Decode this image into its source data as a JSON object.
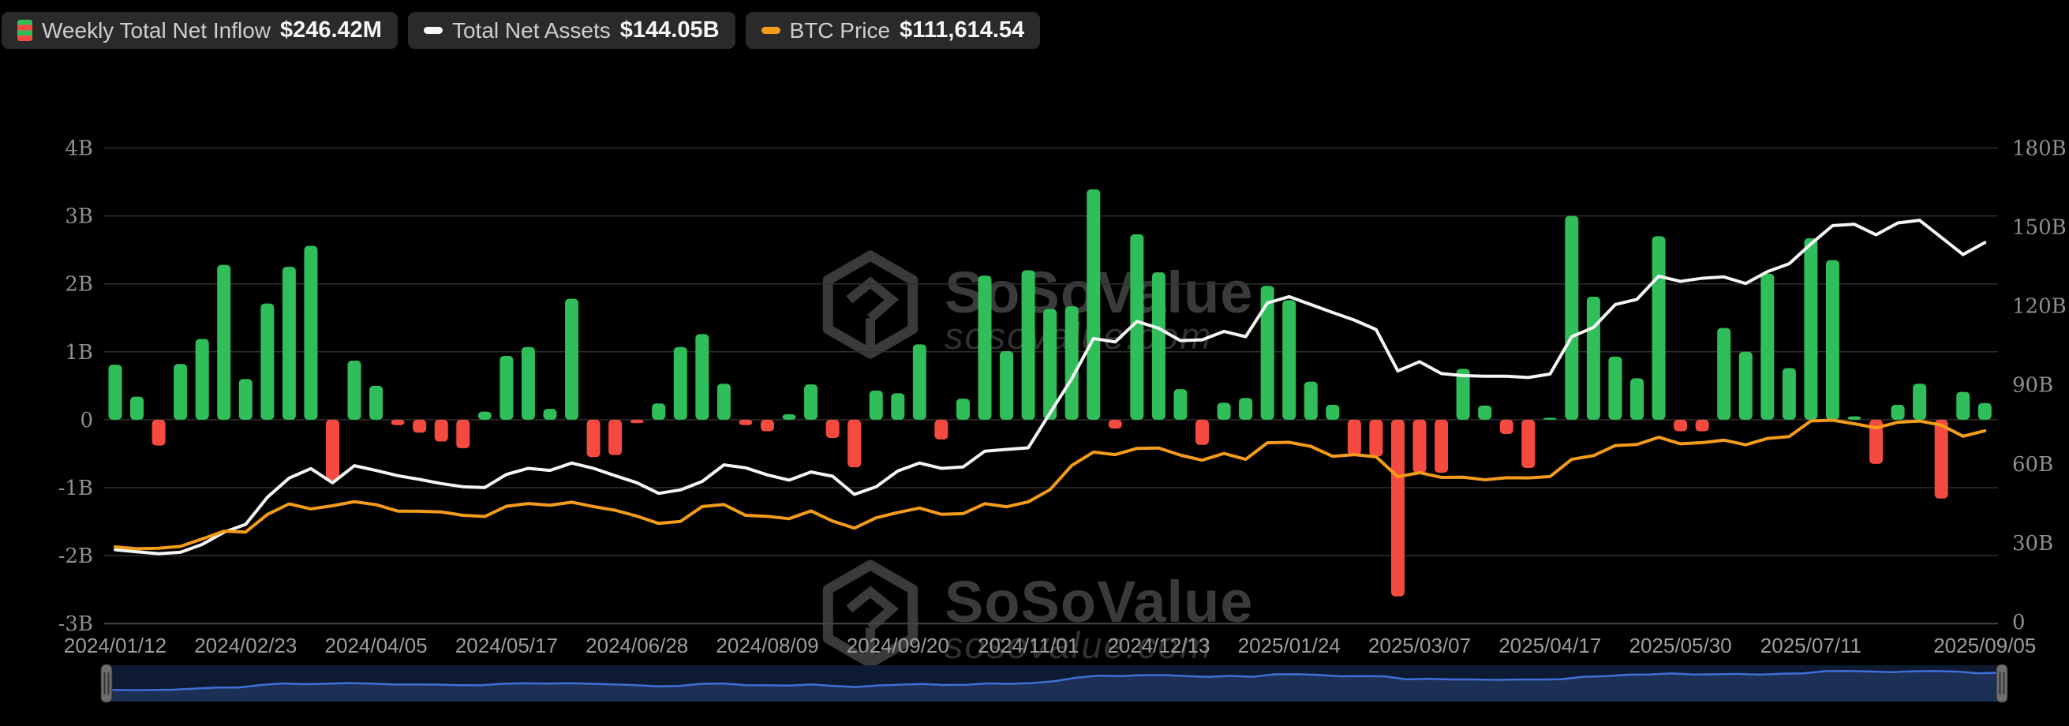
{
  "legend": {
    "items": [
      {
        "label": "Weekly Total Net Inflow",
        "value": "$246.42M",
        "icon": "inflow-bars-icon"
      },
      {
        "label": "Total Net Assets",
        "value": "$144.05B",
        "icon": "white-line-icon"
      },
      {
        "label": "BTC Price",
        "value": "$111,614.54",
        "icon": "orange-line-icon"
      }
    ]
  },
  "watermark": {
    "brand": "SoSoValue",
    "domain": "sosovalue.com"
  },
  "colors": {
    "background": "#000000",
    "bar_positive": "#2fbe59",
    "bar_negative": "#f54a3f",
    "assets_line": "#f5f5f5",
    "btc_line": "#f39b1b",
    "gridline": "#2f2f2f",
    "axis_bottom_line": "#464646",
    "axis_label": "#8f8f8f",
    "date_label": "#9d9d9d",
    "watermark": "#3a3a3a",
    "nav_background": "#0d1a31",
    "nav_fill": "#1c2f55",
    "nav_line": "#3f6fd8",
    "nav_handle": "#6e6e6e",
    "legend_box": "#2a2a2a"
  },
  "chart_data": {
    "type": "bar",
    "title": "",
    "xlabel": "",
    "ylabel_left": "Weekly Total Net Inflow (B$)",
    "ylabel_right": "Total Net Assets (B$)",
    "left_axis_ticks": [
      "4B",
      "3B",
      "2B",
      "1B",
      "0",
      "-1B",
      "-2B",
      "-3B"
    ],
    "left_axis_values": [
      4,
      3,
      2,
      1,
      0,
      -1,
      -2,
      -3
    ],
    "right_axis_ticks": [
      "180B",
      "150B",
      "120B",
      "90B",
      "60B",
      "30B",
      "0"
    ],
    "right_axis_values": [
      180,
      150,
      120,
      90,
      60,
      30,
      0
    ],
    "x_tick_indices": [
      0,
      6,
      12,
      18,
      24,
      30,
      36,
      42,
      48,
      54,
      60,
      66,
      72,
      78,
      86
    ],
    "x_tick_labels": [
      "2024/01/12",
      "2024/02/23",
      "2024/04/05",
      "2024/05/17",
      "2024/06/28",
      "2024/08/09",
      "2024/09/20",
      "2024/11/01",
      "2024/12/13",
      "2025/01/24",
      "2025/03/07",
      "2025/04/17",
      "2025/05/30",
      "2025/07/11",
      "2025/09/05"
    ],
    "categories": [
      "2024/01/12",
      "2024/01/19",
      "2024/01/26",
      "2024/02/02",
      "2024/02/09",
      "2024/02/16",
      "2024/02/23",
      "2024/03/01",
      "2024/03/08",
      "2024/03/15",
      "2024/03/22",
      "2024/03/29",
      "2024/04/05",
      "2024/04/12",
      "2024/04/19",
      "2024/04/26",
      "2024/05/03",
      "2024/05/10",
      "2024/05/17",
      "2024/05/24",
      "2024/05/31",
      "2024/06/07",
      "2024/06/14",
      "2024/06/21",
      "2024/06/28",
      "2024/07/05",
      "2024/07/12",
      "2024/07/19",
      "2024/07/26",
      "2024/08/02",
      "2024/08/09",
      "2024/08/16",
      "2024/08/23",
      "2024/08/30",
      "2024/09/06",
      "2024/09/13",
      "2024/09/20",
      "2024/09/27",
      "2024/10/04",
      "2024/10/11",
      "2024/10/18",
      "2024/10/25",
      "2024/11/01",
      "2024/11/08",
      "2024/11/15",
      "2024/11/22",
      "2024/11/29",
      "2024/12/06",
      "2024/12/13",
      "2024/12/20",
      "2024/12/27",
      "2025/01/03",
      "2025/01/10",
      "2025/01/17",
      "2025/01/24",
      "2025/01/31",
      "2025/02/07",
      "2025/02/14",
      "2025/02/21",
      "2025/02/28",
      "2025/03/07",
      "2025/03/14",
      "2025/03/21",
      "2025/03/28",
      "2025/04/04",
      "2025/04/11",
      "2025/04/17",
      "2025/04/25",
      "2025/05/02",
      "2025/05/09",
      "2025/05/16",
      "2025/05/23",
      "2025/05/30",
      "2025/06/06",
      "2025/06/13",
      "2025/06/20",
      "2025/06/27",
      "2025/07/04",
      "2025/07/11",
      "2025/07/18",
      "2025/07/25",
      "2025/08/01",
      "2025/08/08",
      "2025/08/15",
      "2025/08/22",
      "2025/08/29",
      "2025/09/05"
    ],
    "series": [
      {
        "name": "Weekly Total Net Inflow (B$)",
        "type": "bar",
        "axis": "left",
        "values": [
          0.81,
          0.34,
          -0.38,
          0.82,
          1.19,
          2.28,
          0.6,
          1.71,
          2.25,
          2.56,
          -0.89,
          0.87,
          0.5,
          -0.08,
          -0.19,
          -0.32,
          -0.42,
          0.12,
          0.94,
          1.07,
          0.16,
          1.78,
          -0.55,
          -0.52,
          -0.05,
          0.24,
          1.07,
          1.26,
          0.53,
          -0.08,
          -0.17,
          0.08,
          0.52,
          -0.27,
          -0.7,
          0.43,
          0.39,
          1.11,
          -0.29,
          0.31,
          2.12,
          1.01,
          2.2,
          1.63,
          1.67,
          3.39,
          -0.13,
          2.73,
          2.17,
          0.45,
          -0.37,
          0.25,
          0.32,
          1.97,
          1.76,
          0.56,
          0.22,
          -0.52,
          -0.54,
          -2.6,
          -0.78,
          -0.78,
          0.75,
          0.21,
          -0.21,
          -0.71,
          0.03,
          3.0,
          1.81,
          0.93,
          0.61,
          2.7,
          -0.17,
          -0.17,
          1.35,
          1.0,
          2.15,
          0.76,
          2.67,
          2.35,
          0.05,
          -0.65,
          0.22,
          0.53,
          -1.16,
          0.41,
          0.246
        ]
      },
      {
        "name": "Total Net Assets (B$)",
        "type": "line",
        "axis": "right",
        "values": [
          27.4,
          26.6,
          25.9,
          26.4,
          29.4,
          34.0,
          37.0,
          47.3,
          54.6,
          58.2,
          52.8,
          59.3,
          57.5,
          55.5,
          54.1,
          52.5,
          51.3,
          51.0,
          56.0,
          58.3,
          57.5,
          60.3,
          58.3,
          55.5,
          52.8,
          48.8,
          50.1,
          53.3,
          59.6,
          58.5,
          55.8,
          53.8,
          56.9,
          55.3,
          48.4,
          51.3,
          57.3,
          60.3,
          58.3,
          58.8,
          64.8,
          65.5,
          66.1,
          79.3,
          92.3,
          107.6,
          106.3,
          114.1,
          111.5,
          106.8,
          107.1,
          110.3,
          108.3,
          121.1,
          123.5,
          120.5,
          117.5,
          114.6,
          111.0,
          95.3,
          98.8,
          94.3,
          93.5,
          93.3,
          93.3,
          92.8,
          94.1,
          108.3,
          111.8,
          120.5,
          122.5,
          131.3,
          129.3,
          130.5,
          131.0,
          128.5,
          133.0,
          136.0,
          143.5,
          150.5,
          151.0,
          147.0,
          151.5,
          152.5,
          146.0,
          139.5,
          144.05
        ]
      },
      {
        "name": "BTC Price ($)",
        "type": "line",
        "axis": "btc",
        "values": [
          42800,
          41700,
          42000,
          43100,
          47500,
          52100,
          51600,
          62000,
          68300,
          65300,
          67200,
          69600,
          67800,
          64000,
          63900,
          63500,
          61500,
          60800,
          66900,
          68500,
          67500,
          69300,
          66700,
          64500,
          61000,
          56700,
          57900,
          66700,
          67900,
          61500,
          60900,
          59500,
          64100,
          58100,
          53900,
          60000,
          63200,
          65800,
          62100,
          62500,
          68400,
          66600,
          69500,
          76700,
          91100,
          99000,
          97500,
          101200,
          101400,
          97200,
          94200,
          98200,
          94700,
          104500,
          104800,
          102400,
          96500,
          97500,
          96200,
          84400,
          86800,
          84000,
          84100,
          82600,
          83800,
          83700,
          84500,
          94700,
          96900,
          102900,
          103500,
          107800,
          103900,
          104600,
          106100,
          103300,
          107100,
          108200,
          117500,
          117900,
          115800,
          113400,
          116700,
          117400,
          115000,
          108400,
          111614
        ]
      }
    ],
    "legend_position": "top-left",
    "grid": true,
    "ylim_left": [
      -3,
      4
    ],
    "ylim_right": [
      0,
      180
    ]
  },
  "navigator": {
    "start_label": "2024/01/12",
    "end_label": "2025/09/05"
  }
}
